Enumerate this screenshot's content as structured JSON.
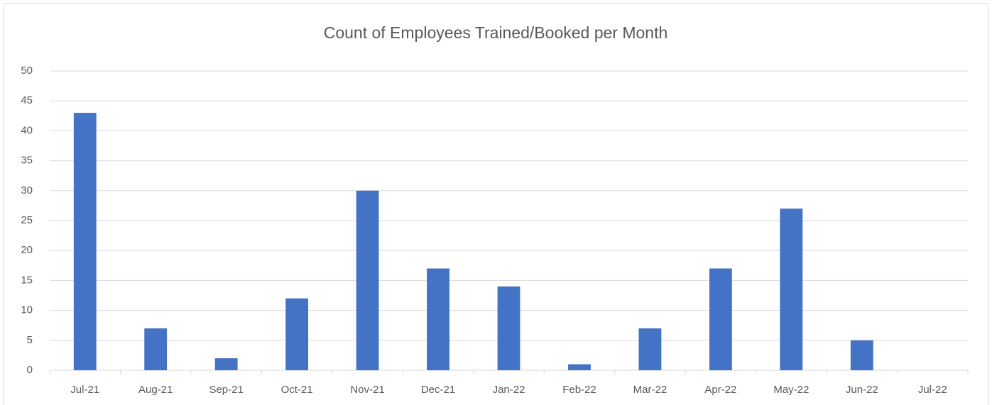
{
  "chart_data": {
    "type": "bar",
    "title": "Count of Employees Trained/Booked per Month",
    "categories": [
      "Jul-21",
      "Aug-21",
      "Sep-21",
      "Oct-21",
      "Nov-21",
      "Dec-21",
      "Jan-22",
      "Feb-22",
      "Mar-22",
      "Apr-22",
      "May-22",
      "Jun-22",
      "Jul-22"
    ],
    "values": [
      43,
      7,
      2,
      12,
      30,
      17,
      14,
      1,
      7,
      17,
      27,
      5,
      0
    ],
    "color": "#4472c4",
    "ylim": [
      0,
      50
    ],
    "yticks": [
      0,
      5,
      10,
      15,
      20,
      25,
      30,
      35,
      40,
      45,
      50
    ],
    "grid": true
  }
}
